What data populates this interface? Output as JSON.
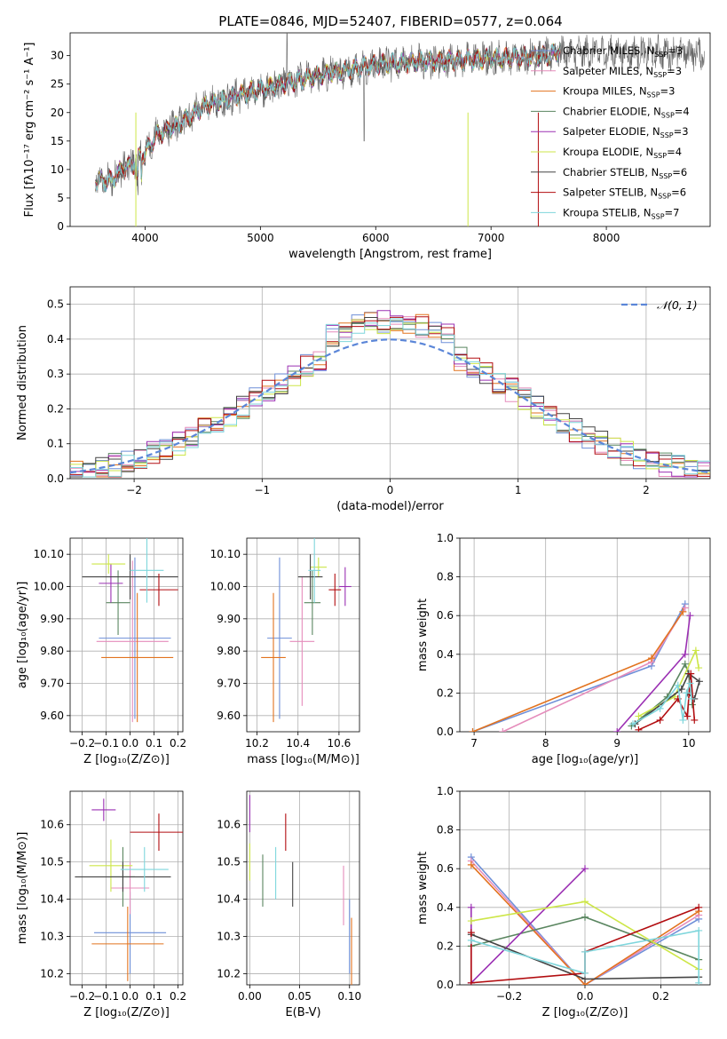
{
  "figure_title": "PLATE=0846, MJD=52407, FIBERID=0577, z=0.064",
  "legend": [
    {
      "name": "Chabrier MILES",
      "nssp": "3",
      "color": "#6e8fd8"
    },
    {
      "name": "Salpeter MILES",
      "nssp": "3",
      "color": "#e58cbb"
    },
    {
      "name": "Kroupa MILES",
      "nssp": "3",
      "color": "#e2731f"
    },
    {
      "name": "Chabrier ELODIE",
      "nssp": "4",
      "color": "#5a8660"
    },
    {
      "name": "Salpeter ELODIE",
      "nssp": "3",
      "color": "#9b30b3"
    },
    {
      "name": "Kroupa ELODIE",
      "nssp": "4",
      "color": "#cde648"
    },
    {
      "name": "Chabrier STELIB",
      "nssp": "6",
      "color": "#444444"
    },
    {
      "name": "Salpeter STELIB",
      "nssp": "6",
      "color": "#b20d10"
    },
    {
      "name": "Kroupa STELIB",
      "nssp": "7",
      "color": "#7fd6dc"
    }
  ],
  "chart_data": [
    {
      "id": "spectrum",
      "type": "line",
      "xlabel": "wavelength [Angstrom, rest frame]",
      "ylabel": "Flux [fλ10⁻¹⁷ erg cm⁻² s⁻¹ A⁻¹]",
      "xlim": [
        3350,
        8900
      ],
      "ylim": [
        0,
        34
      ],
      "xticks": [
        4000,
        5000,
        6000,
        7000,
        8000
      ],
      "yticks": [
        0,
        5,
        10,
        15,
        20,
        25,
        30
      ],
      "grid": false,
      "legend_position": "right",
      "continuum": [
        [
          3570,
          8
        ],
        [
          3700,
          8
        ],
        [
          3800,
          10
        ],
        [
          3900,
          11
        ],
        [
          4000,
          13
        ],
        [
          4100,
          16
        ],
        [
          4300,
          18
        ],
        [
          4500,
          21
        ],
        [
          4800,
          23
        ],
        [
          5000,
          24
        ],
        [
          5200,
          25
        ],
        [
          5500,
          26.5
        ],
        [
          6000,
          28.5
        ],
        [
          6500,
          29
        ],
        [
          7000,
          29.5
        ],
        [
          7500,
          30
        ],
        [
          7600,
          31
        ]
      ],
      "model_extent": [
        3570,
        7600
      ],
      "data_extent": [
        3570,
        8850
      ]
    },
    {
      "id": "residuals",
      "type": "line",
      "xlabel": "(data-model)/error",
      "ylabel": "Normed distribution",
      "xlim": [
        -2.5,
        2.5
      ],
      "ylim": [
        0,
        0.55
      ],
      "xticks": [
        -2,
        -1,
        0,
        1,
        2
      ],
      "yticks": [
        0.0,
        0.1,
        0.2,
        0.3,
        0.4,
        0.5
      ],
      "grid": true,
      "legend_position": "upper right",
      "legend": "𝒩(0, 1)",
      "gaussian": {
        "mean": 0,
        "sigma": 1,
        "color": "#5b86d8"
      },
      "histogram_bins": [
        -2.5,
        2.5,
        0.1
      ]
    },
    {
      "id": "age_vs_Z",
      "type": "scatter",
      "xlabel": "Z [log₁₀(Z/Z⊙)]",
      "ylabel": "age  [log₁₀(age/yr)]",
      "xlim": [
        -0.25,
        0.22
      ],
      "ylim": [
        9.55,
        10.15
      ],
      "xticks": [
        -0.2,
        -0.1,
        0.0,
        0.1,
        0.2
      ],
      "yticks": [
        9.6,
        9.7,
        9.8,
        9.9,
        10.0,
        10.1
      ],
      "grid": true,
      "points": [
        {
          "series": 0,
          "x": 0.02,
          "y": 9.84,
          "xerr": 0.15,
          "yerr": 0.25
        },
        {
          "series": 1,
          "x": 0.01,
          "y": 9.83,
          "xerr": 0.15,
          "yerr": 0.25
        },
        {
          "series": 2,
          "x": 0.03,
          "y": 9.78,
          "xerr": 0.15,
          "yerr": 0.2
        },
        {
          "series": 3,
          "x": -0.05,
          "y": 9.95,
          "xerr": 0.05,
          "yerr": 0.1
        },
        {
          "series": 4,
          "x": -0.08,
          "y": 10.01,
          "xerr": 0.05,
          "yerr": 0.06
        },
        {
          "series": 5,
          "x": -0.09,
          "y": 10.07,
          "xerr": 0.07,
          "yerr": 0.03
        },
        {
          "series": 6,
          "x": 0.0,
          "y": 10.03,
          "xerr": 0.2,
          "yerr": 0.07
        },
        {
          "series": 7,
          "x": 0.12,
          "y": 9.99,
          "xerr": 0.08,
          "yerr": 0.05
        },
        {
          "series": 8,
          "x": 0.07,
          "y": 10.05,
          "xerr": 0.07,
          "yerr": 0.1
        }
      ]
    },
    {
      "id": "age_vs_mass",
      "type": "scatter",
      "xlabel": "mass [log₁₀(M/M⊙)]",
      "ylabel": "",
      "xlim": [
        10.15,
        10.7
      ],
      "ylim": [
        9.55,
        10.15
      ],
      "xticks": [
        10.2,
        10.4,
        10.6
      ],
      "yticks": [
        9.6,
        9.7,
        9.8,
        9.9,
        10.0,
        10.1
      ],
      "grid": true,
      "points": [
        {
          "series": 0,
          "x": 10.31,
          "y": 9.84,
          "xerr": 0.06,
          "yerr": 0.25
        },
        {
          "series": 1,
          "x": 10.42,
          "y": 9.83,
          "xerr": 0.06,
          "yerr": 0.2
        },
        {
          "series": 2,
          "x": 10.28,
          "y": 9.78,
          "xerr": 0.06,
          "yerr": 0.2
        },
        {
          "series": 3,
          "x": 10.47,
          "y": 9.95,
          "xerr": 0.04,
          "yerr": 0.1
        },
        {
          "series": 4,
          "x": 10.63,
          "y": 10.0,
          "xerr": 0.03,
          "yerr": 0.06
        },
        {
          "series": 5,
          "x": 10.5,
          "y": 10.06,
          "xerr": 0.04,
          "yerr": 0.03
        },
        {
          "series": 6,
          "x": 10.46,
          "y": 10.03,
          "xerr": 0.06,
          "yerr": 0.07
        },
        {
          "series": 7,
          "x": 10.58,
          "y": 9.99,
          "xerr": 0.03,
          "yerr": 0.05
        },
        {
          "series": 8,
          "x": 10.48,
          "y": 10.05,
          "xerr": 0.03,
          "yerr": 0.1
        }
      ]
    },
    {
      "id": "mass_weight_vs_age",
      "type": "line",
      "xlabel": "age  [log₁₀(age/yr)]",
      "ylabel": "mass weight",
      "xlim": [
        6.8,
        10.3
      ],
      "ylim": [
        0,
        1
      ],
      "xticks": [
        7,
        8,
        9,
        10
      ],
      "yticks": [
        0.0,
        0.2,
        0.4,
        0.6,
        0.8,
        1.0
      ],
      "grid": true,
      "series": [
        {
          "series": 0,
          "points": [
            [
              6.98,
              0.0
            ],
            [
              9.48,
              0.34
            ],
            [
              9.95,
              0.66
            ]
          ]
        },
        {
          "series": 1,
          "points": [
            [
              7.4,
              0.0
            ],
            [
              9.48,
              0.36
            ],
            [
              9.95,
              0.64
            ]
          ]
        },
        {
          "series": 2,
          "points": [
            [
              6.98,
              0.0
            ],
            [
              9.48,
              0.38
            ],
            [
              9.92,
              0.62
            ]
          ]
        },
        {
          "series": 3,
          "points": [
            [
              9.2,
              0.03
            ],
            [
              9.7,
              0.18
            ],
            [
              9.95,
              0.35
            ],
            [
              10.0,
              0.3
            ],
            [
              10.05,
              0.14
            ]
          ]
        },
        {
          "series": 4,
          "points": [
            [
              9.0,
              0.0
            ],
            [
              9.95,
              0.4
            ],
            [
              10.02,
              0.6
            ]
          ]
        },
        {
          "series": 5,
          "points": [
            [
              9.3,
              0.08
            ],
            [
              9.8,
              0.18
            ],
            [
              10.1,
              0.42
            ],
            [
              10.14,
              0.33
            ]
          ]
        },
        {
          "series": 6,
          "points": [
            [
              9.25,
              0.04
            ],
            [
              9.9,
              0.22
            ],
            [
              10.0,
              0.3
            ],
            [
              10.15,
              0.26
            ],
            [
              10.08,
              0.17
            ],
            [
              9.98,
              0.2
            ]
          ]
        },
        {
          "series": 7,
          "points": [
            [
              9.3,
              0.01
            ],
            [
              9.6,
              0.06
            ],
            [
              9.85,
              0.17
            ],
            [
              9.98,
              0.08
            ],
            [
              10.03,
              0.3
            ],
            [
              10.08,
              0.06
            ]
          ]
        },
        {
          "series": 8,
          "points": [
            [
              9.22,
              0.04
            ],
            [
              9.6,
              0.12
            ],
            [
              9.85,
              0.24
            ],
            [
              9.92,
              0.06
            ],
            [
              9.97,
              0.2
            ],
            [
              10.02,
              0.25
            ],
            [
              10.04,
              0.17
            ]
          ]
        }
      ]
    },
    {
      "id": "mass_vs_Z",
      "type": "scatter",
      "xlabel": "Z [log₁₀(Z/Z⊙)]",
      "ylabel": "mass [log₁₀(M/M⊙)]",
      "xlim": [
        -0.25,
        0.22
      ],
      "ylim": [
        10.17,
        10.69
      ],
      "xticks": [
        -0.2,
        -0.1,
        0.0,
        0.1,
        0.2
      ],
      "yticks": [
        10.2,
        10.3,
        10.4,
        10.5,
        10.6
      ],
      "grid": true,
      "points": [
        {
          "series": 0,
          "x": 0.0,
          "y": 10.31,
          "xerr": 0.15,
          "yerr": 0.11
        },
        {
          "series": 1,
          "x": 0.0,
          "y": 10.43,
          "xerr": 0.08,
          "yerr": 0.07
        },
        {
          "series": 2,
          "x": -0.01,
          "y": 10.28,
          "xerr": 0.15,
          "yerr": 0.1
        },
        {
          "series": 3,
          "x": -0.03,
          "y": 10.46,
          "xerr": 0.05,
          "yerr": 0.08
        },
        {
          "series": 4,
          "x": -0.11,
          "y": 10.64,
          "xerr": 0.05,
          "yerr": 0.03
        },
        {
          "series": 5,
          "x": -0.08,
          "y": 10.49,
          "xerr": 0.09,
          "yerr": 0.07
        },
        {
          "series": 6,
          "x": -0.03,
          "y": 10.46,
          "xerr": 0.2,
          "yerr": 0.04
        },
        {
          "series": 7,
          "x": 0.12,
          "y": 10.58,
          "xerr": 0.12,
          "yerr": 0.05
        },
        {
          "series": 8,
          "x": 0.06,
          "y": 10.48,
          "xerr": 0.1,
          "yerr": 0.06
        }
      ]
    },
    {
      "id": "mass_vs_EBV",
      "type": "scatter",
      "xlabel": "E(B-V)",
      "ylabel": "",
      "xlim": [
        -0.003,
        0.11
      ],
      "ylim": [
        10.17,
        10.69
      ],
      "xticks": [
        0.0,
        0.05,
        0.1
      ],
      "yticks": [
        10.2,
        10.3,
        10.4,
        10.5,
        10.6
      ],
      "grid": true,
      "points": [
        {
          "series": 0,
          "x": 0.1,
          "y": 10.3,
          "xerr": 0.0,
          "yerr": 0.1
        },
        {
          "series": 1,
          "x": 0.094,
          "y": 10.41,
          "xerr": 0.0,
          "yerr": 0.08
        },
        {
          "series": 2,
          "x": 0.102,
          "y": 10.25,
          "xerr": 0.0,
          "yerr": 0.1
        },
        {
          "series": 3,
          "x": 0.013,
          "y": 10.45,
          "xerr": 0.0,
          "yerr": 0.07
        },
        {
          "series": 4,
          "x": 0.0,
          "y": 10.63,
          "xerr": 0.0,
          "yerr": 0.05
        },
        {
          "series": 5,
          "x": 0.0,
          "y": 10.5,
          "xerr": 0.0,
          "yerr": 0.05
        },
        {
          "series": 6,
          "x": 0.043,
          "y": 10.44,
          "xerr": 0.0,
          "yerr": 0.06
        },
        {
          "series": 7,
          "x": 0.036,
          "y": 10.58,
          "xerr": 0.0,
          "yerr": 0.05
        },
        {
          "series": 8,
          "x": 0.026,
          "y": 10.47,
          "xerr": 0.0,
          "yerr": 0.07
        }
      ]
    },
    {
      "id": "mass_weight_vs_Z",
      "type": "line",
      "xlabel": "Z [log₁₀(Z/Z⊙)]",
      "ylabel": "mass weight",
      "xlim": [
        -0.33,
        0.33
      ],
      "ylim": [
        0,
        1
      ],
      "xticks": [
        -0.2,
        0.0,
        0.2
      ],
      "yticks": [
        0.0,
        0.2,
        0.4,
        0.6,
        0.8,
        1.0
      ],
      "grid": true,
      "series": [
        {
          "series": 0,
          "points": [
            [
              -0.3,
              0.66
            ],
            [
              0.0,
              0.0
            ],
            [
              0.3,
              0.34
            ]
          ]
        },
        {
          "series": 1,
          "points": [
            [
              -0.3,
              0.64
            ],
            [
              0.0,
              0.0
            ],
            [
              0.3,
              0.36
            ]
          ]
        },
        {
          "series": 2,
          "points": [
            [
              -0.3,
              0.62
            ],
            [
              0.0,
              0.0
            ],
            [
              0.3,
              0.38
            ]
          ]
        },
        {
          "series": 3,
          "points": [
            [
              -0.3,
              0.2
            ],
            [
              0.0,
              0.35
            ],
            [
              0.3,
              0.13
            ]
          ]
        },
        {
          "series": 4,
          "points": [
            [
              -0.3,
              0.4
            ],
            [
              -0.3,
              0.01
            ],
            [
              0.0,
              0.6
            ]
          ]
        },
        {
          "series": 5,
          "points": [
            [
              -0.3,
              0.33
            ],
            [
              0.0,
              0.43
            ],
            [
              0.3,
              0.08
            ]
          ]
        },
        {
          "series": 6,
          "points": [
            [
              -0.3,
              0.26
            ],
            [
              0.0,
              0.03
            ],
            [
              0.3,
              0.04
            ]
          ]
        },
        {
          "series": 7,
          "points": [
            [
              -0.3,
              0.27
            ],
            [
              -0.3,
              0.01
            ],
            [
              0.0,
              0.06
            ],
            [
              0.0,
              0.17
            ],
            [
              0.3,
              0.4
            ]
          ]
        },
        {
          "series": 8,
          "points": [
            [
              -0.3,
              0.23
            ],
            [
              0.0,
              0.06
            ],
            [
              0.0,
              0.17
            ],
            [
              0.3,
              0.28
            ],
            [
              0.3,
              0.01
            ]
          ]
        }
      ]
    }
  ]
}
